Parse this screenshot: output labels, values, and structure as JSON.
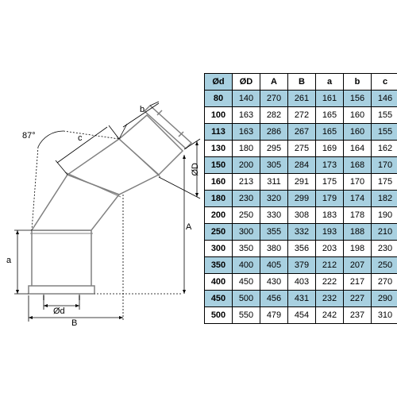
{
  "diagram": {
    "type": "technical-drawing",
    "outline_color": "#808080",
    "dimension_color": "#000000",
    "background_color": "#ffffff",
    "labels": {
      "angle": "87°",
      "Od_small": "Ød",
      "OD_big": "ØD",
      "A": "A",
      "B": "B",
      "a": "a",
      "b": "b",
      "c": "c"
    }
  },
  "table": {
    "columns": [
      "Ød",
      "ØD",
      "A",
      "B",
      "a",
      "b",
      "c"
    ],
    "rows": [
      {
        "shaded": true,
        "cells": [
          "80",
          "140",
          "270",
          "261",
          "161",
          "156",
          "146"
        ]
      },
      {
        "shaded": false,
        "cells": [
          "100",
          "163",
          "282",
          "272",
          "165",
          "160",
          "155"
        ]
      },
      {
        "shaded": true,
        "cells": [
          "113",
          "163",
          "286",
          "267",
          "165",
          "160",
          "155"
        ]
      },
      {
        "shaded": false,
        "cells": [
          "130",
          "180",
          "295",
          "275",
          "169",
          "164",
          "162"
        ]
      },
      {
        "shaded": true,
        "cells": [
          "150",
          "200",
          "305",
          "284",
          "173",
          "168",
          "170"
        ]
      },
      {
        "shaded": false,
        "cells": [
          "160",
          "213",
          "311",
          "291",
          "175",
          "170",
          "175"
        ]
      },
      {
        "shaded": true,
        "cells": [
          "180",
          "230",
          "320",
          "299",
          "179",
          "174",
          "182"
        ]
      },
      {
        "shaded": false,
        "cells": [
          "200",
          "250",
          "330",
          "308",
          "183",
          "178",
          "190"
        ]
      },
      {
        "shaded": true,
        "cells": [
          "250",
          "300",
          "355",
          "332",
          "193",
          "188",
          "210"
        ]
      },
      {
        "shaded": false,
        "cells": [
          "300",
          "350",
          "380",
          "356",
          "203",
          "198",
          "230"
        ]
      },
      {
        "shaded": true,
        "cells": [
          "350",
          "400",
          "405",
          "379",
          "212",
          "207",
          "250"
        ]
      },
      {
        "shaded": false,
        "cells": [
          "400",
          "450",
          "430",
          "403",
          "222",
          "217",
          "270"
        ]
      },
      {
        "shaded": true,
        "cells": [
          "450",
          "500",
          "456",
          "431",
          "232",
          "227",
          "290"
        ]
      },
      {
        "shaded": false,
        "cells": [
          "500",
          "550",
          "479",
          "454",
          "242",
          "237",
          "310"
        ]
      }
    ],
    "header_bg_first": "#a8d0e0",
    "shaded_bg": "#a8d0e0",
    "border_color": "#000000",
    "font_size": 11
  }
}
